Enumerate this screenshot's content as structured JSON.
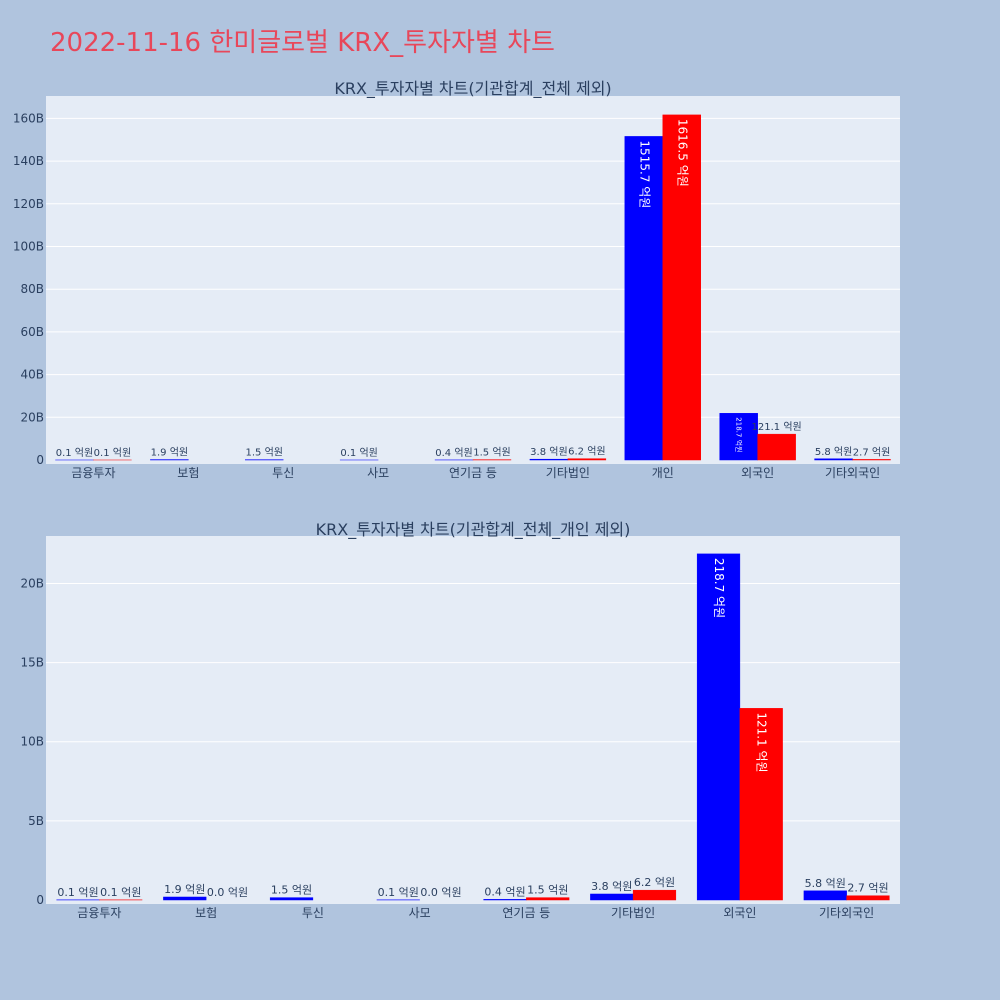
{
  "page_title": "2022-11-16 한미글로벌 KRX_투자자별 차트",
  "colors": {
    "buy": "#0000ff",
    "sell": "#ff0000",
    "background": "#b0c4de",
    "plot_bg": "#e5ecf6",
    "title": "#e8475a"
  },
  "chart_data": [
    {
      "type": "bar",
      "title": "KRX_투자자별 차트(기관합계_전체 제외)",
      "categories": [
        "금융투자",
        "보험",
        "투신",
        "사모",
        "연기금 등",
        "기타법인",
        "개인",
        "외국인",
        "기타외국인"
      ],
      "series": [
        {
          "values": [
            0.01,
            0.19,
            0.15,
            0.01,
            0.04,
            0.38,
            151.57,
            21.87,
            0.58
          ],
          "labels": [
            "0.1 억원",
            "1.9 억원",
            "1.5 억원",
            "0.1 억원",
            "0.4 억원",
            "3.8 억원",
            "1515.7 억원",
            "218.7 억원",
            "5.8 억원"
          ]
        },
        {
          "values": [
            0.01,
            0,
            0,
            0,
            0.15,
            0.62,
            161.65,
            12.11,
            0.27
          ],
          "labels": [
            "0.1 억원",
            "",
            "",
            "",
            "1.5 억원",
            "6.2 억원",
            "1616.5 억원",
            "121.1 억원",
            "2.7 억원"
          ]
        }
      ],
      "yticks": [
        0,
        20,
        40,
        60,
        80,
        100,
        120,
        140,
        160
      ],
      "ytick_labels": [
        "0",
        "20B",
        "40B",
        "60B",
        "80B",
        "100B",
        "120B",
        "140B",
        "160B"
      ],
      "ylim": [
        0,
        170.5
      ],
      "grid": true
    },
    {
      "type": "bar",
      "title": "KRX_투자자별 차트(기관합계_전체_개인 제외)",
      "categories": [
        "금융투자",
        "보험",
        "투신",
        "사모",
        "연기금 등",
        "기타법인",
        "외국인",
        "기타외국인"
      ],
      "series": [
        {
          "values": [
            0.01,
            0.19,
            0.15,
            0.01,
            0.04,
            0.38,
            21.87,
            0.58
          ],
          "labels": [
            "0.1 억원",
            "1.9 억원",
            "1.5 억원",
            "0.1 억원",
            "0.4 억원",
            "3.8 억원",
            "218.7 억원",
            "5.8 억원"
          ]
        },
        {
          "values": [
            0.01,
            0.0,
            0,
            0.0,
            0.15,
            0.62,
            12.11,
            0.27
          ],
          "labels": [
            "0.1 억원",
            "0.0 억원",
            "",
            "0.0 억원",
            "1.5 억원",
            "6.2 억원",
            "121.1 억원",
            "2.7 억원"
          ]
        }
      ],
      "yticks": [
        0,
        5,
        10,
        15,
        20
      ],
      "ytick_labels": [
        "0",
        "5B",
        "10B",
        "15B",
        "20B"
      ],
      "ylim": [
        0,
        23
      ],
      "grid": true
    }
  ]
}
